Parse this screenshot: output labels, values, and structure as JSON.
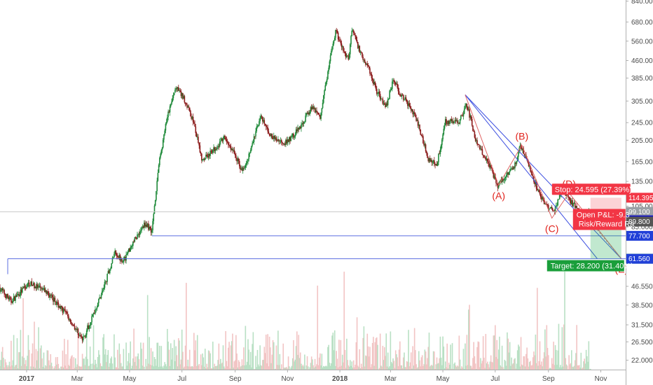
{
  "chart_data": {
    "type": "candlestick",
    "y_scale": "log",
    "ylim": [
      20,
      850
    ],
    "x_range": [
      "2016-12-01",
      "2018-11-30"
    ],
    "price_ticks": [
      "840.000",
      "680.000",
      "560.000",
      "460.000",
      "385.000",
      "305.000",
      "245.000",
      "205.000",
      "165.000",
      "135.000",
      "105.000",
      "85.000",
      "61.500",
      "46.550",
      "38.500",
      "31.500",
      "26.500",
      "22.000"
    ],
    "time_labels": [
      {
        "date": "2017-01-01",
        "text": "2017",
        "bold": true
      },
      {
        "date": "2017-03-01",
        "text": "Mar"
      },
      {
        "date": "2017-05-01",
        "text": "May"
      },
      {
        "date": "2017-07-01",
        "text": "Jul"
      },
      {
        "date": "2017-09-01",
        "text": "Sep"
      },
      {
        "date": "2017-11-01",
        "text": "Nov"
      },
      {
        "date": "2018-01-01",
        "text": "2018",
        "bold": true
      },
      {
        "date": "2018-03-01",
        "text": "Mar"
      },
      {
        "date": "2018-05-01",
        "text": "May"
      },
      {
        "date": "2018-07-01",
        "text": "Jul"
      },
      {
        "date": "2018-09-01",
        "text": "Sep"
      },
      {
        "date": "2018-11-01",
        "text": "Nov"
      }
    ],
    "price_path": [
      [
        "2016-12-01",
        46
      ],
      [
        "2016-12-15",
        40
      ],
      [
        "2017-01-05",
        48
      ],
      [
        "2017-01-25",
        44
      ],
      [
        "2017-02-15",
        36
      ],
      [
        "2017-03-01",
        30
      ],
      [
        "2017-03-08",
        27
      ],
      [
        "2017-03-18",
        33
      ],
      [
        "2017-04-01",
        45
      ],
      [
        "2017-04-15",
        66
      ],
      [
        "2017-04-25",
        60
      ],
      [
        "2017-05-05",
        72
      ],
      [
        "2017-05-20",
        88
      ],
      [
        "2017-05-28",
        82
      ],
      [
        "2017-06-05",
        160
      ],
      [
        "2017-06-15",
        260
      ],
      [
        "2017-06-25",
        350
      ],
      [
        "2017-07-05",
        310
      ],
      [
        "2017-07-15",
        250
      ],
      [
        "2017-07-25",
        170
      ],
      [
        "2017-08-05",
        180
      ],
      [
        "2017-08-20",
        210
      ],
      [
        "2017-09-01",
        180
      ],
      [
        "2017-09-10",
        150
      ],
      [
        "2017-09-20",
        185
      ],
      [
        "2017-10-01",
        260
      ],
      [
        "2017-10-15",
        210
      ],
      [
        "2017-11-01",
        200
      ],
      [
        "2017-11-15",
        230
      ],
      [
        "2017-12-01",
        290
      ],
      [
        "2017-12-10",
        260
      ],
      [
        "2017-12-20",
        430
      ],
      [
        "2017-12-28",
        620
      ],
      [
        "2018-01-05",
        520
      ],
      [
        "2018-01-12",
        460
      ],
      [
        "2018-01-16",
        640
      ],
      [
        "2018-01-25",
        510
      ],
      [
        "2018-02-05",
        420
      ],
      [
        "2018-02-15",
        330
      ],
      [
        "2018-02-25",
        290
      ],
      [
        "2018-03-05",
        380
      ],
      [
        "2018-03-15",
        320
      ],
      [
        "2018-03-25",
        290
      ],
      [
        "2018-04-05",
        230
      ],
      [
        "2018-04-15",
        170
      ],
      [
        "2018-04-25",
        160
      ],
      [
        "2018-05-05",
        250
      ],
      [
        "2018-05-20",
        245
      ],
      [
        "2018-05-30",
        295
      ],
      [
        "2018-06-10",
        200
      ],
      [
        "2018-06-25",
        160
      ],
      [
        "2018-07-05",
        130
      ],
      [
        "2018-07-15",
        145
      ],
      [
        "2018-07-25",
        160
      ],
      [
        "2018-08-01",
        195
      ],
      [
        "2018-08-10",
        160
      ],
      [
        "2018-08-20",
        125
      ],
      [
        "2018-08-30",
        105
      ],
      [
        "2018-09-08",
        100
      ],
      [
        "2018-09-18",
        125
      ],
      [
        "2018-09-28",
        110
      ],
      [
        "2018-10-08",
        100
      ],
      [
        "2018-10-15",
        94
      ],
      [
        "2018-10-20",
        99.1
      ]
    ],
    "volume_max": 60,
    "levels": [
      {
        "from": "2017-05-27",
        "price": 77.7,
        "label": "77.700",
        "label_color": "#2140d8"
      },
      {
        "from": "2016-12-10",
        "price": 61.56,
        "label": "61.560",
        "label_color": "#2140d8"
      }
    ],
    "current_price": {
      "price": 99.1,
      "label": "99.100"
    },
    "channel": {
      "upper": [
        [
          "2018-05-27",
          325
        ],
        [
          "2018-11-25",
          61.56
        ]
      ],
      "lower": [
        [
          "2018-07-05",
          130
        ],
        [
          "2018-10-28",
          61.56
        ]
      ]
    },
    "wave_points": [
      {
        "label": "(A)",
        "date": "2018-07-05",
        "price": 130,
        "pos": "below"
      },
      {
        "label": "(B)",
        "date": "2018-08-01",
        "price": 195,
        "pos": "above"
      },
      {
        "label": "(C)",
        "date": "2018-09-05",
        "price": 93,
        "pos": "below"
      },
      {
        "label": "(D)",
        "date": "2018-09-25",
        "price": 120,
        "pos": "above"
      },
      {
        "label": "(E)",
        "date": "2018-11-25",
        "price": 61.6,
        "pos": "below"
      }
    ],
    "position": {
      "start": "2018-10-20",
      "end": "2018-11-25",
      "entry": 89.8,
      "stop": 114.395,
      "target": 61.6,
      "stop_text": "Stop: 24.595 (27.39%)",
      "target_text": "Target: 28.200 (31.40%)",
      "pnl_text": "Open P&L: -9.3",
      "rr_text": "Risk/Reward Ra",
      "axis_labels": [
        {
          "price": 114.395,
          "text": "114.395",
          "color": "#f23645"
        },
        {
          "price": 90.946,
          "text": "90.946",
          "color": "#1515c8"
        },
        {
          "price": 89.8,
          "text": "89.800",
          "color": "#555555"
        },
        {
          "price": 61.6,
          "text": "61.600",
          "color": "#0a8f3a"
        }
      ]
    }
  }
}
